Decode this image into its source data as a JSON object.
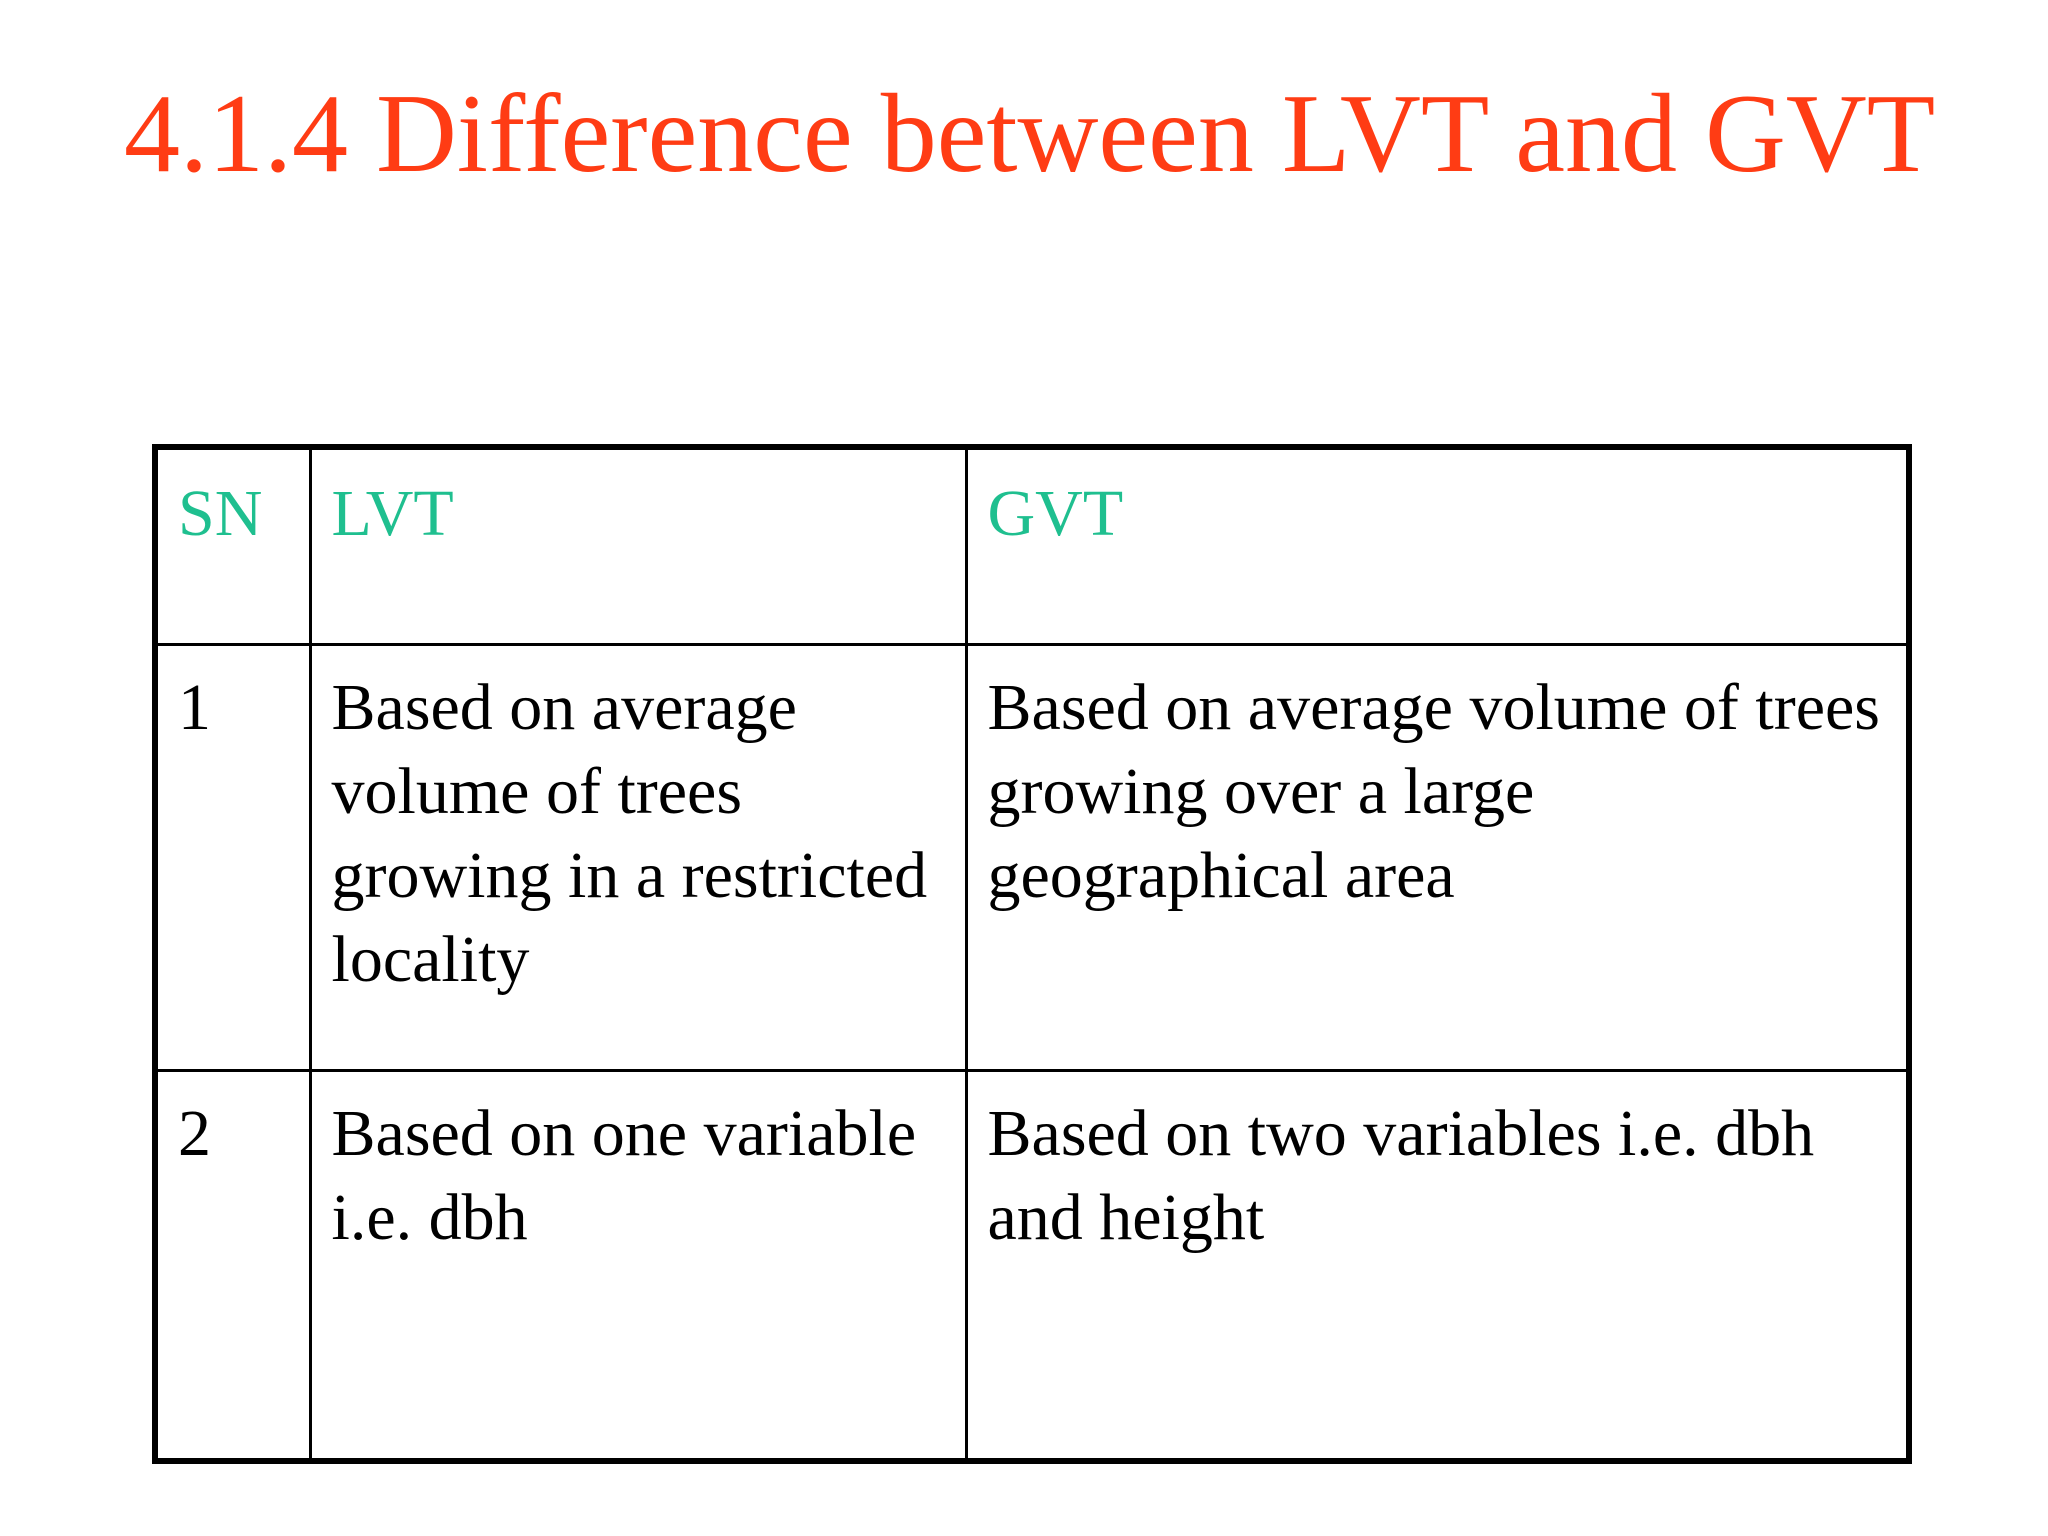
{
  "slide": {
    "title": "4.1.4 Difference between LVT and GVT"
  },
  "colors": {
    "title": "#ff3c14",
    "header_text": "#1fbf8f",
    "body_text": "#000000",
    "border": "#000000",
    "background": "#ffffff"
  },
  "table": {
    "headers": {
      "sn": "SN",
      "lvt": "LVT",
      "gvt": "GVT"
    },
    "rows": [
      {
        "sn": "1",
        "lvt": "Based on average volume of trees growing in a restricted locality",
        "gvt": "Based on average volume of trees growing over a large geographical area"
      },
      {
        "sn": "2",
        "lvt": "Based on one variable i.e. dbh",
        "gvt": "Based on two variables i.e. dbh and height"
      }
    ]
  }
}
